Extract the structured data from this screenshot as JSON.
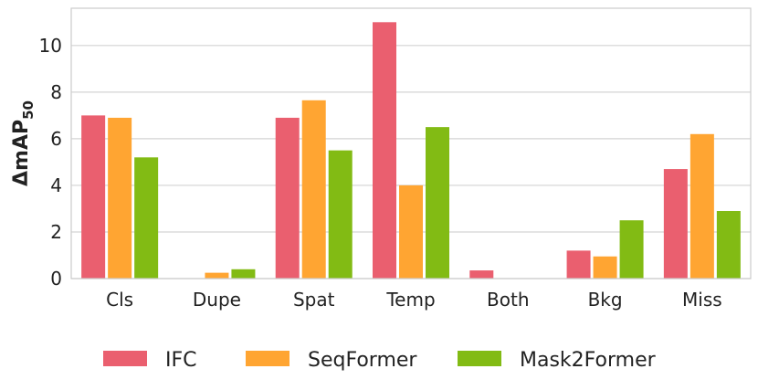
{
  "chart_data": {
    "type": "bar",
    "ylabel": "ΔmAP",
    "ylabel_subscript": "50",
    "categories": [
      "Cls",
      "Dupe",
      "Spat",
      "Temp",
      "Both",
      "Bkg",
      "Miss"
    ],
    "series": [
      {
        "name": "IFC",
        "color": "#ea5f6f",
        "values": [
          7.0,
          0.0,
          6.9,
          11.0,
          0.35,
          1.2,
          4.7
        ]
      },
      {
        "name": "SeqFormer",
        "color": "#ffa532",
        "values": [
          6.9,
          0.25,
          7.65,
          4.0,
          0.0,
          0.95,
          6.2
        ]
      },
      {
        "name": "Mask2Former",
        "color": "#82bb14",
        "values": [
          5.2,
          0.4,
          5.5,
          6.5,
          0.0,
          2.5,
          2.9
        ]
      }
    ],
    "ylim": [
      0,
      11.6
    ],
    "yticks": [
      0,
      2,
      4,
      6,
      8,
      10
    ],
    "grid": true,
    "legend": "bottom"
  }
}
